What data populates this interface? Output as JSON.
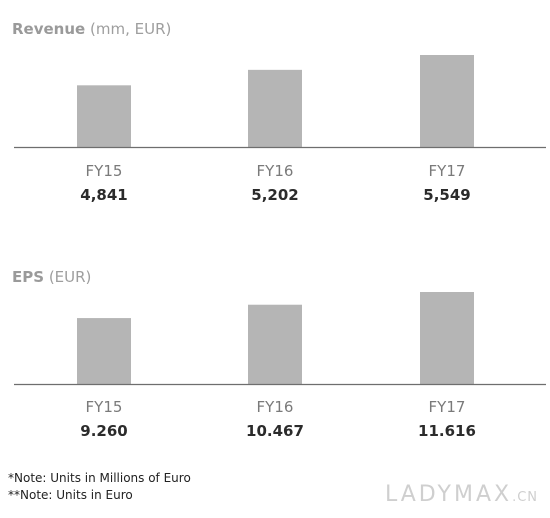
{
  "chart_data": [
    {
      "type": "bar",
      "title": "Revenue",
      "subtitle": "(mm, EUR)",
      "categories": [
        "FY15",
        "FY16",
        "FY17"
      ],
      "values": [
        4841,
        5202,
        5549
      ],
      "value_labels": [
        "4,841",
        "5,202",
        "5,549"
      ],
      "bar_color": "#b5b5b5",
      "axis_color": "#6e6e6e",
      "grid": false
    },
    {
      "type": "bar",
      "title": "EPS",
      "subtitle": "(EUR)",
      "categories": [
        "FY15",
        "FY16",
        "FY17"
      ],
      "values": [
        9.26,
        10.467,
        11.616
      ],
      "value_labels": [
        "9.260",
        "10.467",
        "11.616"
      ],
      "bar_color": "#b5b5b5",
      "axis_color": "#6e6e6e",
      "grid": false
    }
  ],
  "notes": [
    "*Note: Units in Millions of Euro",
    "**Note: Units in Euro"
  ],
  "watermark": {
    "main": "LADYMAX",
    "sub": ".CN"
  }
}
